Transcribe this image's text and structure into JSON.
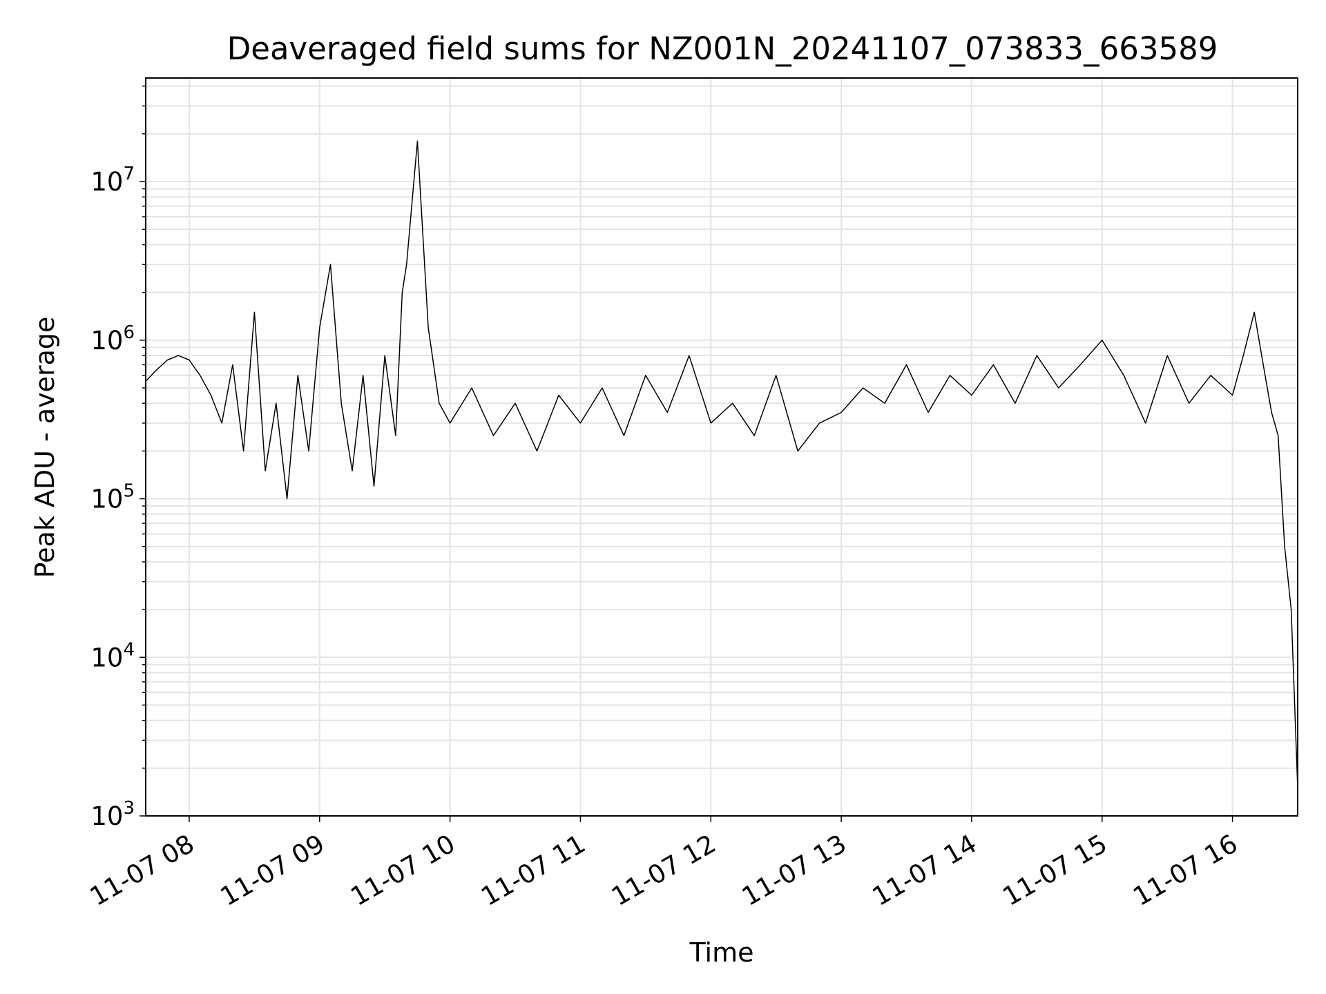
{
  "chart_data": {
    "type": "line",
    "title": "Deaveraged field sums for NZ001N_20241107_073833_663589",
    "xlabel": "Time",
    "ylabel": "Peak ADU - average",
    "yscale": "log",
    "ylim": [
      1000,
      45000000
    ],
    "xlim": [
      "2024-11-07 07:40",
      "2024-11-07 16:30"
    ],
    "grid": true,
    "line_color": "#000000",
    "grid_color": "#e4e4e4",
    "x_ticks": [
      {
        "time": "2024-11-07 08:00",
        "label": "11-07 08"
      },
      {
        "time": "2024-11-07 09:00",
        "label": "11-07 09"
      },
      {
        "time": "2024-11-07 10:00",
        "label": "11-07 10"
      },
      {
        "time": "2024-11-07 11:00",
        "label": "11-07 11"
      },
      {
        "time": "2024-11-07 12:00",
        "label": "11-07 12"
      },
      {
        "time": "2024-11-07 13:00",
        "label": "11-07 13"
      },
      {
        "time": "2024-11-07 14:00",
        "label": "11-07 14"
      },
      {
        "time": "2024-11-07 15:00",
        "label": "11-07 15"
      },
      {
        "time": "2024-11-07 16:00",
        "label": "11-07 16"
      }
    ],
    "y_ticks": [
      {
        "value": 1000,
        "base": "10",
        "exp": "3"
      },
      {
        "value": 10000,
        "base": "10",
        "exp": "4"
      },
      {
        "value": 100000,
        "base": "10",
        "exp": "5"
      },
      {
        "value": 1000000,
        "base": "10",
        "exp": "6"
      },
      {
        "value": 10000000,
        "base": "10",
        "exp": "7"
      }
    ],
    "series": [
      {
        "x": [
          "2024-11-07 07:40",
          "2024-11-07 07:45",
          "2024-11-07 07:50",
          "2024-11-07 07:55",
          "2024-11-07 08:00",
          "2024-11-07 08:05",
          "2024-11-07 08:10",
          "2024-11-07 08:15",
          "2024-11-07 08:20",
          "2024-11-07 08:25",
          "2024-11-07 08:30",
          "2024-11-07 08:35",
          "2024-11-07 08:40",
          "2024-11-07 08:45",
          "2024-11-07 08:50",
          "2024-11-07 08:55",
          "2024-11-07 09:00",
          "2024-11-07 09:05",
          "2024-11-07 09:10",
          "2024-11-07 09:15",
          "2024-11-07 09:20",
          "2024-11-07 09:25",
          "2024-11-07 09:30",
          "2024-11-07 09:35",
          "2024-11-07 09:38",
          "2024-11-07 09:40",
          "2024-11-07 09:45",
          "2024-11-07 09:50",
          "2024-11-07 09:55",
          "2024-11-07 10:00",
          "2024-11-07 10:10",
          "2024-11-07 10:20",
          "2024-11-07 10:30",
          "2024-11-07 10:40",
          "2024-11-07 10:50",
          "2024-11-07 11:00",
          "2024-11-07 11:10",
          "2024-11-07 11:20",
          "2024-11-07 11:30",
          "2024-11-07 11:40",
          "2024-11-07 11:50",
          "2024-11-07 12:00",
          "2024-11-07 12:10",
          "2024-11-07 12:20",
          "2024-11-07 12:30",
          "2024-11-07 12:40",
          "2024-11-07 12:50",
          "2024-11-07 13:00",
          "2024-11-07 13:10",
          "2024-11-07 13:20",
          "2024-11-07 13:30",
          "2024-11-07 13:40",
          "2024-11-07 13:50",
          "2024-11-07 14:00",
          "2024-11-07 14:10",
          "2024-11-07 14:20",
          "2024-11-07 14:30",
          "2024-11-07 14:40",
          "2024-11-07 14:50",
          "2024-11-07 15:00",
          "2024-11-07 15:10",
          "2024-11-07 15:20",
          "2024-11-07 15:30",
          "2024-11-07 15:40",
          "2024-11-07 15:50",
          "2024-11-07 16:00",
          "2024-11-07 16:05",
          "2024-11-07 16:10",
          "2024-11-07 16:15",
          "2024-11-07 16:18",
          "2024-11-07 16:21",
          "2024-11-07 16:24",
          "2024-11-07 16:27",
          "2024-11-07 16:30"
        ],
        "y": [
          550000,
          650000,
          750000,
          800000,
          750000,
          600000,
          450000,
          300000,
          700000,
          200000,
          1500000,
          150000,
          400000,
          100000,
          600000,
          200000,
          1200000,
          3000000,
          400000,
          150000,
          600000,
          120000,
          800000,
          250000,
          2000000,
          3000000,
          18000000,
          1200000,
          400000,
          300000,
          500000,
          250000,
          400000,
          200000,
          450000,
          300000,
          500000,
          250000,
          600000,
          350000,
          800000,
          300000,
          400000,
          250000,
          600000,
          200000,
          300000,
          350000,
          500000,
          400000,
          700000,
          350000,
          600000,
          450000,
          700000,
          400000,
          800000,
          500000,
          700000,
          1000000,
          600000,
          300000,
          800000,
          400000,
          600000,
          450000,
          800000,
          1500000,
          600000,
          350000,
          250000,
          50000,
          20000,
          1500
        ]
      }
    ]
  }
}
